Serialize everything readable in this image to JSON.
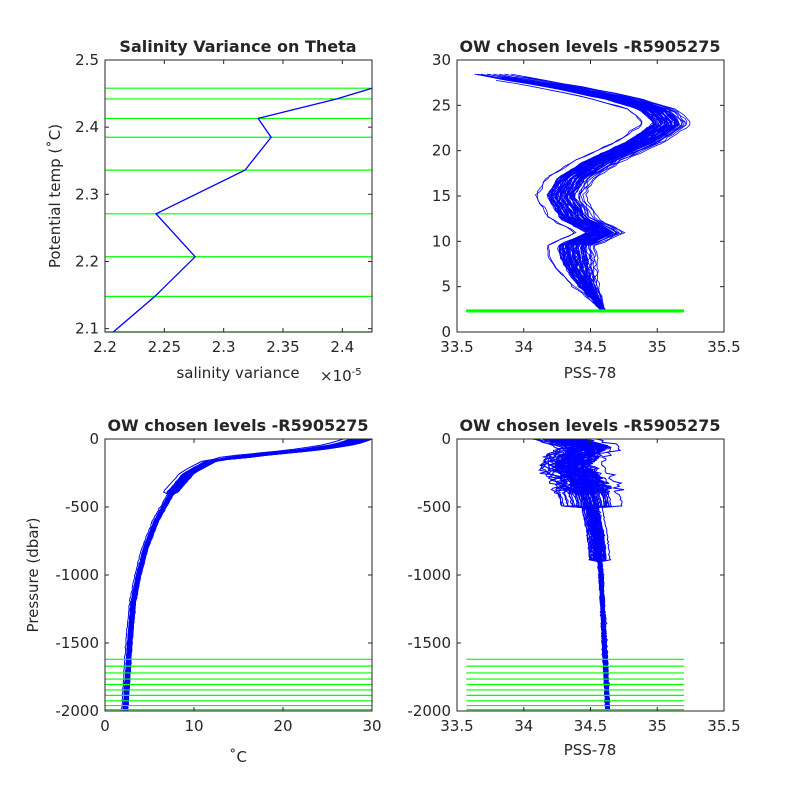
{
  "colors": {
    "profile": "#0000ff",
    "levels": "#00ff00",
    "axes": "#262626"
  },
  "chart_data": [
    {
      "id": "p1",
      "type": "line",
      "title": "Salinity Variance on Theta",
      "xlabel": "salinity variance",
      "x_exponent_label": "×10",
      "x_exponent_power": "-5",
      "ylabel": "Potential temp (˚C)",
      "xlim": [
        2.2,
        2.425
      ],
      "ylim": [
        2.095,
        2.5
      ],
      "xticks": [
        2.2,
        2.25,
        2.3,
        2.35,
        2.4
      ],
      "xtick_labels": [
        "2.2",
        "2.25",
        "2.3",
        "2.35",
        "2.4"
      ],
      "yticks": [
        2.1,
        2.2,
        2.3,
        2.4,
        2.5
      ],
      "ytick_labels": [
        "2.1",
        "2.2",
        "2.3",
        "2.4",
        "2.5"
      ],
      "variance_profile": {
        "x": [
          2.207,
          2.242,
          2.276,
          2.243,
          2.318,
          2.34,
          2.329,
          2.395,
          2.425
        ],
        "y": [
          2.095,
          2.148,
          2.207,
          2.271,
          2.336,
          2.385,
          2.413,
          2.442,
          2.458
        ]
      },
      "chosen_levels": [
        2.095,
        2.148,
        2.207,
        2.271,
        2.336,
        2.385,
        2.413,
        2.442,
        2.458
      ]
    },
    {
      "id": "p2",
      "type": "line",
      "title": "OW chosen levels -R5905275",
      "xlabel": "PSS-78",
      "ylabel": "",
      "xlim": [
        33.5,
        35.5
      ],
      "ylim": [
        0,
        30
      ],
      "xticks": [
        33.5,
        34,
        34.5,
        35,
        35.5
      ],
      "xtick_labels": [
        "33.5",
        "34",
        "34.5",
        "35",
        "35.5"
      ],
      "yticks": [
        0,
        5,
        10,
        15,
        20,
        25,
        30
      ],
      "ytick_labels": [
        "0",
        "5",
        "10",
        "15",
        "20",
        "25",
        "30"
      ],
      "mean_profile": {
        "salinity": [
          34.6,
          34.55,
          34.48,
          34.42,
          34.38,
          34.6,
          34.4,
          34.3,
          34.38,
          34.6,
          34.9,
          35.1,
          35.0,
          34.7,
          34.3,
          33.9,
          33.7
        ],
        "theta": [
          2.2,
          3.5,
          5.0,
          7.0,
          9.5,
          11.0,
          12.5,
          15.0,
          17.0,
          19.0,
          21.0,
          23.0,
          24.5,
          25.8,
          27.0,
          28.0,
          28.6
        ]
      },
      "spread_salinity": 0.25,
      "chosen_level_band": {
        "salinity": [
          33.57,
          35.2
        ],
        "theta": [
          2.2,
          2.46
        ]
      }
    },
    {
      "id": "p3",
      "type": "line",
      "title": "OW chosen levels -R5905275",
      "xlabel": "˚C",
      "ylabel": "Pressure (dbar)",
      "xlim": [
        0,
        30
      ],
      "ylim": [
        -2000,
        0
      ],
      "xticks": [
        0,
        10,
        20,
        30
      ],
      "xtick_labels": [
        "0",
        "10",
        "20",
        "30"
      ],
      "yticks": [
        -2000,
        -1500,
        -1000,
        -500,
        0
      ],
      "ytick_labels": [
        "-2000",
        "-1500",
        "-1000",
        "-500",
        "0"
      ],
      "mean_profile": {
        "temperature": [
          29.0,
          27.0,
          23.0,
          17.0,
          12.0,
          9.5,
          7.5,
          5.8,
          4.6,
          3.8,
          3.2,
          2.8,
          2.5,
          2.3
        ],
        "pressure": [
          0,
          -40,
          -80,
          -120,
          -160,
          -250,
          -400,
          -600,
          -800,
          -1000,
          -1200,
          -1500,
          -1800,
          -2000
        ]
      },
      "spread_temperature": 1.2,
      "chosen_levels_dbar": [
        -1620,
        -1670,
        -1720,
        -1765,
        -1805,
        -1845,
        -1885,
        -1925,
        -1960,
        -1990
      ],
      "level_x_range": [
        0,
        30
      ]
    },
    {
      "id": "p4",
      "type": "line",
      "title": "OW chosen levels -R5905275",
      "xlabel": "PSS-78",
      "ylabel": "",
      "xlim": [
        33.5,
        35.5
      ],
      "ylim": [
        -2000,
        0
      ],
      "xticks": [
        33.5,
        34,
        34.5,
        35,
        35.5
      ],
      "xtick_labels": [
        "33.5",
        "34",
        "34.5",
        "35",
        "35.5"
      ],
      "yticks": [
        -2000,
        -1500,
        -1000,
        -500,
        0
      ],
      "ytick_labels": [
        "-2000",
        "-1500",
        "-1000",
        "-500",
        "0"
      ],
      "mean_profile": {
        "salinity": [
          34.3,
          34.5,
          34.4,
          34.35,
          34.45,
          34.5,
          34.55,
          34.58,
          34.6,
          34.62,
          34.63
        ],
        "pressure": [
          0,
          -60,
          -120,
          -200,
          -300,
          -450,
          -700,
          -1000,
          -1400,
          -1800,
          -2000
        ]
      },
      "spread_salinity": 0.3,
      "chosen_levels_dbar": [
        -1620,
        -1670,
        -1720,
        -1765,
        -1805,
        -1845,
        -1885,
        -1925,
        -1960,
        -1990
      ],
      "level_x_range": [
        33.57,
        35.2
      ]
    }
  ]
}
